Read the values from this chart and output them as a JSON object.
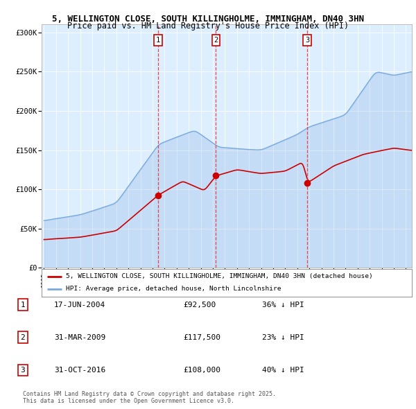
{
  "title_line1": "5, WELLINGTON CLOSE, SOUTH KILLINGHOLME, IMMINGHAM, DN40 3HN",
  "title_line2": "Price paid vs. HM Land Registry's House Price Index (HPI)",
  "ylim": [
    0,
    310000
  ],
  "yticks": [
    0,
    50000,
    100000,
    150000,
    200000,
    250000,
    300000
  ],
  "ytick_labels": [
    "£0",
    "£50K",
    "£100K",
    "£150K",
    "£200K",
    "£250K",
    "£300K"
  ],
  "sale1": {
    "date": 2004.46,
    "price": 92500,
    "label": "1"
  },
  "sale2": {
    "date": 2009.25,
    "price": 117500,
    "label": "2"
  },
  "sale3": {
    "date": 2016.83,
    "price": 108000,
    "label": "3"
  },
  "vline_color": "#ee3333",
  "hpi_color": "#7aaadd",
  "price_color": "#cc0000",
  "bg_color": "#ddeeff",
  "plot_bg": "#ffffff",
  "legend_label_price": "5, WELLINGTON CLOSE, SOUTH KILLINGHOLME, IMMINGHAM, DN40 3HN (detached house)",
  "legend_label_hpi": "HPI: Average price, detached house, North Lincolnshire",
  "table_entries": [
    {
      "num": "1",
      "date": "17-JUN-2004",
      "price": "£92,500",
      "pct": "36% ↓ HPI"
    },
    {
      "num": "2",
      "date": "31-MAR-2009",
      "price": "£117,500",
      "pct": "23% ↓ HPI"
    },
    {
      "num": "3",
      "date": "31-OCT-2016",
      "price": "£108,000",
      "pct": "40% ↓ HPI"
    }
  ],
  "footnote": "Contains HM Land Registry data © Crown copyright and database right 2025.\nThis data is licensed under the Open Government Licence v3.0.",
  "xstart": 1995,
  "xend": 2025
}
